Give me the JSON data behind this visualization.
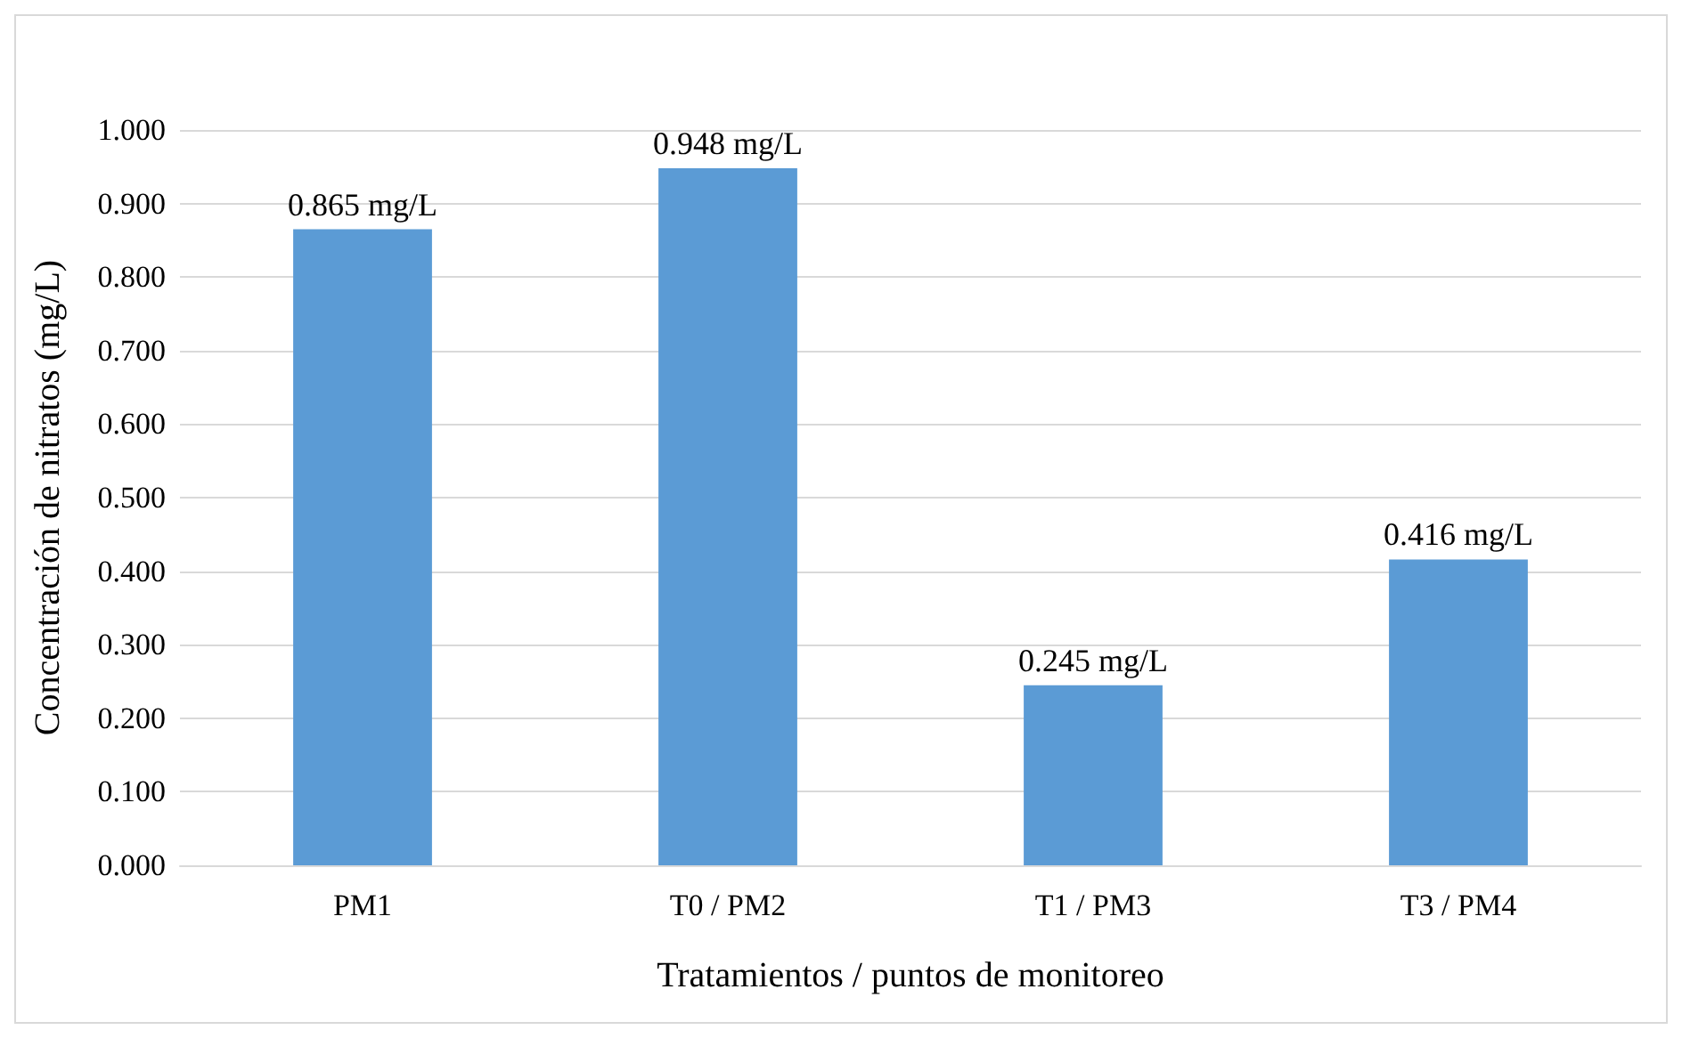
{
  "chart_data": {
    "type": "bar",
    "xlabel": "Tratamientos / puntos de monitoreo",
    "ylabel": "Concentración de nitratos (mg/L)",
    "categories": [
      "PM1",
      "T0 / PM2",
      "T1 / PM3",
      "T3 / PM4"
    ],
    "values": [
      0.865,
      0.948,
      0.245,
      0.416
    ],
    "value_labels": [
      "0.865 mg/L",
      "0.948 mg/L",
      "0.245 mg/L",
      "0.416 mg/L"
    ],
    "color": "#5b9bd5",
    "ylim": [
      0,
      1
    ],
    "yticks": [
      {
        "value": 0,
        "label": "0.000"
      },
      {
        "value": 0.1,
        "label": "0.100"
      },
      {
        "value": 0.2,
        "label": "0.200"
      },
      {
        "value": 0.3,
        "label": "0.300"
      },
      {
        "value": 0.4,
        "label": "0.400"
      },
      {
        "value": 0.5,
        "label": "0.500"
      },
      {
        "value": 0.6,
        "label": "0.600"
      },
      {
        "value": 0.7,
        "label": "0.700"
      },
      {
        "value": 0.8,
        "label": "0.800"
      },
      {
        "value": 0.9,
        "label": "0.900"
      },
      {
        "value": 1,
        "label": "1.000"
      }
    ],
    "grid": "y"
  }
}
